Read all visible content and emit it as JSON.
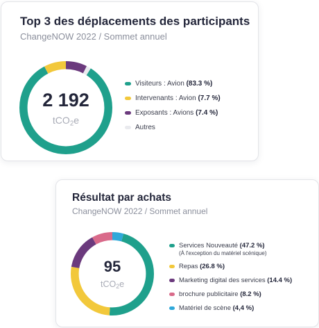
{
  "charts": [
    {
      "title": "Top 3 des déplacements des participants",
      "subtitle": "ChangeNOW 2022 / Sommet annuel",
      "center_value": "2 192",
      "center_unit_main": "tCO",
      "center_unit_sub": "2",
      "center_unit_tail": "e",
      "legend": [
        {
          "label": "Visiteurs : Avion",
          "value": "(83.3 %)",
          "color": "#1fa08c"
        },
        {
          "label": "Intervenants : Avion",
          "value": "(7.7 %)",
          "color": "#f2c83b"
        },
        {
          "label": "Exposants : Avions",
          "value": "(7.4 %)",
          "color": "#6b3a7d"
        },
        {
          "label": "Autres",
          "value": "",
          "color": "#e9eaee"
        }
      ]
    },
    {
      "title": "Résultat par achats",
      "subtitle": "ChangeNOW 2022 / Sommet annuel",
      "center_value": "95",
      "center_unit_main": "tCO",
      "center_unit_sub": "2",
      "center_unit_tail": "e",
      "legend": [
        {
          "label": "Services Nouveauté",
          "value": "(47.2 %)",
          "note": "(À l'exception du matériel scénique)",
          "color": "#1fa08c"
        },
        {
          "label": "Repas",
          "value": "(26.8 %)",
          "color": "#f2c83b"
        },
        {
          "label": "Marketing digital des services",
          "value": "(14.4 %)",
          "color": "#6b3a7d"
        },
        {
          "label": "brochure publicitaire",
          "value": "(8.2 %)",
          "color": "#d96a8a"
        },
        {
          "label": "Matériel de scène",
          "value": "(4,4 %)",
          "color": "#2fa8d9"
        }
      ]
    }
  ],
  "chart_data": [
    {
      "type": "pie",
      "title": "Top 3 des déplacements des participants",
      "categories": [
        "Visiteurs : Avion",
        "Intervenants : Avion",
        "Exposants : Avions",
        "Autres"
      ],
      "values": [
        83.3,
        7.7,
        7.4,
        1.6
      ],
      "colors": [
        "#1fa08c",
        "#f2c83b",
        "#6b3a7d",
        "#e9eaee"
      ],
      "start_category": "Exposants : Avions",
      "legend_position": "right"
    },
    {
      "type": "pie",
      "title": "Résultat par achats",
      "categories": [
        "Services Nouveauté",
        "Repas",
        "Marketing digital des services",
        "brochure publicitaire",
        "Matériel de scène"
      ],
      "values": [
        47.2,
        26.8,
        14.4,
        8.2,
        4.4
      ],
      "colors": [
        "#1fa08c",
        "#f2c83b",
        "#6b3a7d",
        "#d96a8a",
        "#2fa8d9"
      ],
      "start_category": "Matériel de scène",
      "legend_position": "right"
    }
  ]
}
